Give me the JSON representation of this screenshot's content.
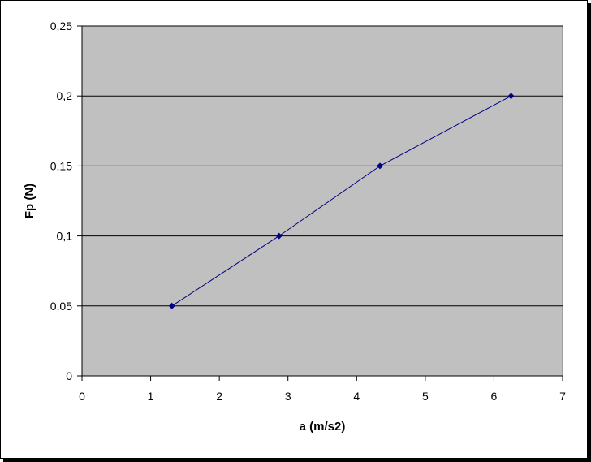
{
  "chart_data": {
    "type": "line",
    "title": "",
    "xlabel": "a (m/s2)",
    "ylabel": "Fp  (N)",
    "xlim": [
      0,
      7
    ],
    "ylim": [
      0,
      0.25
    ],
    "x_ticks": [
      0,
      1,
      2,
      3,
      4,
      5,
      6,
      7
    ],
    "y_ticks": [
      0,
      0.05,
      0.1,
      0.15,
      0.2,
      0.25
    ],
    "x_tick_labels": [
      "0",
      "1",
      "2",
      "3",
      "4",
      "5",
      "6",
      "7"
    ],
    "y_tick_labels": [
      "0",
      "0,05",
      "0,1",
      "0,15",
      "0,2",
      "0,25"
    ],
    "grid": "horizontal",
    "legend": "none",
    "series": [
      {
        "x": [
          1.31,
          2.87,
          4.34,
          6.25
        ],
        "y": [
          0.05,
          0.1,
          0.15,
          0.2
        ],
        "color": "#000080",
        "marker": "diamond"
      }
    ],
    "colors": {
      "plot_background": "#c0c0c0",
      "gridline": "#000000",
      "series_line": "#000080"
    }
  }
}
